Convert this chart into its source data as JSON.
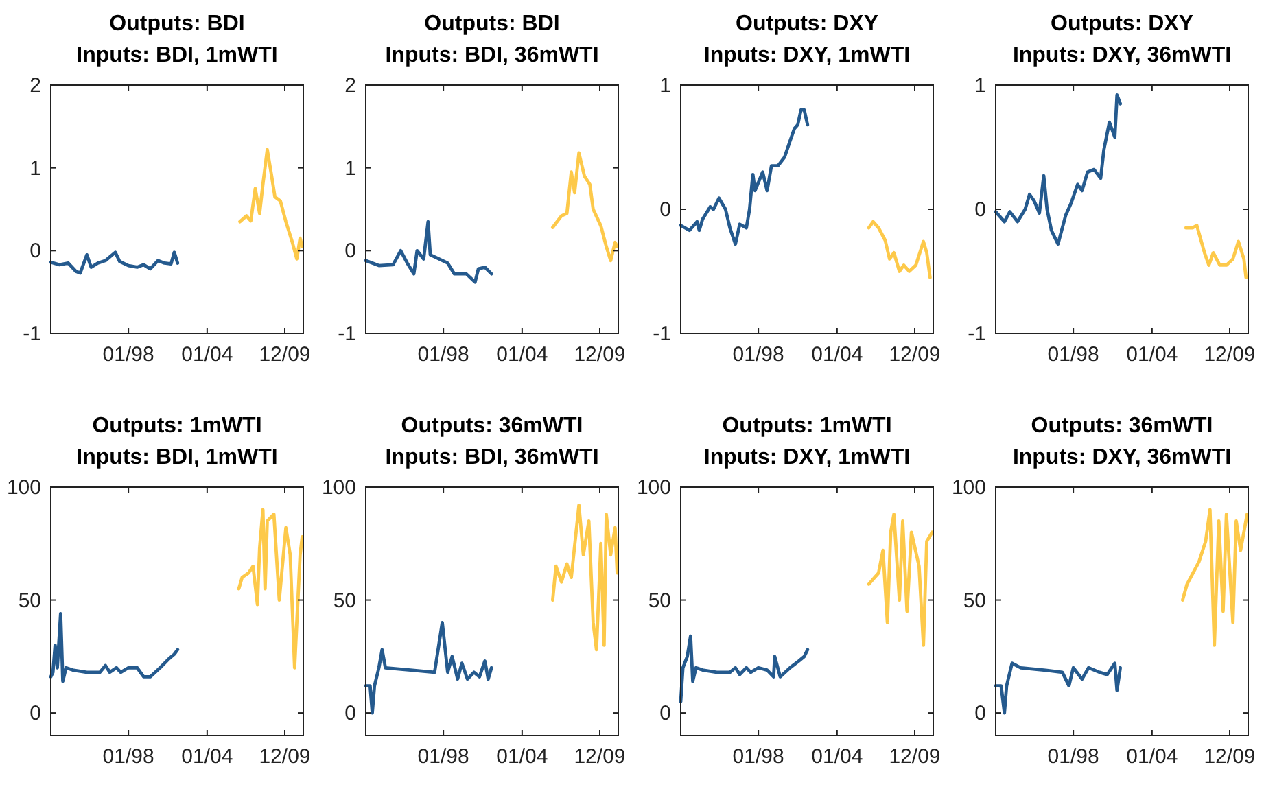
{
  "chart_data": [
    {
      "type": "line",
      "title": "Outputs: BDI",
      "subtitle": "Inputs: BDI, 1mWTI",
      "xlim": [
        "1992-02",
        "2011-05"
      ],
      "xticks": [
        {
          "value": "1998-01",
          "label": "01/98"
        },
        {
          "value": "2004-01",
          "label": "01/04"
        },
        {
          "value": "2009-12",
          "label": "12/09"
        }
      ],
      "ylim": [
        -1,
        2
      ],
      "yticks": [
        -1,
        0,
        1,
        2
      ],
      "series": [
        {
          "color": "#255a8e",
          "x": [
            "1992-02",
            "1992-10",
            "1993-06",
            "1994-01",
            "1994-05",
            "1994-11",
            "1995-03",
            "1995-09",
            "1996-04",
            "1997-01",
            "1997-05",
            "1998-01",
            "1998-09",
            "1999-03",
            "1999-09",
            "2000-04",
            "2000-10",
            "2001-04",
            "2001-07",
            "2001-10"
          ],
          "values": [
            -0.14,
            -0.17,
            -0.15,
            -0.25,
            -0.27,
            -0.05,
            -0.2,
            -0.15,
            -0.12,
            -0.02,
            -0.13,
            -0.18,
            -0.2,
            -0.17,
            -0.22,
            -0.12,
            -0.15,
            -0.16,
            -0.02,
            -0.15
          ]
        },
        {
          "color": "#fdc94a",
          "x": [
            "2006-07",
            "2007-01",
            "2007-05",
            "2007-09",
            "2008-01",
            "2008-04",
            "2008-08",
            "2008-12",
            "2009-03",
            "2009-08",
            "2010-01",
            "2010-07",
            "2010-11",
            "2011-02",
            "2011-04"
          ],
          "values": [
            0.35,
            0.42,
            0.36,
            0.75,
            0.45,
            0.8,
            1.22,
            0.9,
            0.65,
            0.6,
            0.35,
            0.1,
            -0.1,
            0.15,
            0.05
          ]
        }
      ]
    },
    {
      "type": "line",
      "title": "Outputs: BDI",
      "subtitle": "Inputs: BDI, 36mWTI",
      "xlim": [
        "1992-02",
        "2011-05"
      ],
      "xticks": [
        {
          "value": "1998-01",
          "label": "01/98"
        },
        {
          "value": "2004-01",
          "label": "01/04"
        },
        {
          "value": "2009-12",
          "label": "12/09"
        }
      ],
      "ylim": [
        -1,
        2
      ],
      "yticks": [
        -1,
        0,
        1,
        2
      ],
      "series": [
        {
          "color": "#255a8e",
          "x": [
            "1992-02",
            "1993-02",
            "1994-03",
            "1994-10",
            "1995-04",
            "1995-10",
            "1996-01",
            "1996-07",
            "1996-11",
            "1997-01",
            "1997-09",
            "1998-05",
            "1998-11",
            "1999-10",
            "2000-06",
            "2000-09",
            "2001-03",
            "2001-09"
          ],
          "values": [
            -0.12,
            -0.18,
            -0.17,
            0.0,
            -0.15,
            -0.28,
            0.0,
            -0.1,
            0.35,
            -0.05,
            -0.1,
            -0.15,
            -0.28,
            -0.28,
            -0.38,
            -0.22,
            -0.2,
            -0.28
          ]
        },
        {
          "color": "#fdc94a",
          "x": [
            "2006-05",
            "2007-01",
            "2007-06",
            "2007-10",
            "2008-01",
            "2008-05",
            "2008-10",
            "2009-03",
            "2009-06",
            "2010-01",
            "2010-06",
            "2010-10",
            "2011-02",
            "2011-04"
          ],
          "values": [
            0.28,
            0.42,
            0.45,
            0.95,
            0.7,
            1.18,
            0.9,
            0.8,
            0.5,
            0.3,
            0.05,
            -0.12,
            0.1,
            0.05
          ]
        }
      ]
    },
    {
      "type": "line",
      "title": "Outputs: DXY",
      "subtitle": "Inputs: DXY, 1mWTI",
      "xlim": [
        "1992-02",
        "2011-05"
      ],
      "xticks": [
        {
          "value": "1998-01",
          "label": "01/98"
        },
        {
          "value": "2004-01",
          "label": "01/04"
        },
        {
          "value": "2009-12",
          "label": "12/09"
        }
      ],
      "ylim": [
        -1,
        1
      ],
      "yticks": [
        -1,
        0,
        1
      ],
      "series": [
        {
          "color": "#255a8e",
          "x": [
            "1992-02",
            "1992-10",
            "1993-05",
            "1993-07",
            "1993-10",
            "1994-05",
            "1994-08",
            "1995-01",
            "1995-07",
            "1995-11",
            "1996-04",
            "1996-08",
            "1997-02",
            "1997-05",
            "1997-08",
            "1997-10",
            "1998-05",
            "1998-09",
            "1999-01",
            "1999-07",
            "2000-01",
            "2000-06",
            "2000-10",
            "2001-01",
            "2001-04",
            "2001-07",
            "2001-10"
          ],
          "values": [
            -0.13,
            -0.17,
            -0.1,
            -0.17,
            -0.08,
            0.02,
            0.0,
            0.09,
            0.0,
            -0.15,
            -0.28,
            -0.12,
            -0.15,
            0.0,
            0.28,
            0.15,
            0.3,
            0.15,
            0.35,
            0.35,
            0.42,
            0.55,
            0.65,
            0.68,
            0.8,
            0.8,
            0.68
          ]
        },
        {
          "color": "#fdc94a",
          "x": [
            "2006-06",
            "2006-10",
            "2007-03",
            "2007-09",
            "2008-01",
            "2008-05",
            "2008-10",
            "2009-02",
            "2009-07",
            "2010-01",
            "2010-08",
            "2010-11",
            "2011-02"
          ],
          "values": [
            -0.15,
            -0.1,
            -0.15,
            -0.25,
            -0.4,
            -0.35,
            -0.5,
            -0.45,
            -0.5,
            -0.45,
            -0.26,
            -0.35,
            -0.55
          ]
        }
      ]
    },
    {
      "type": "line",
      "title": "Outputs: DXY",
      "subtitle": "Inputs: DXY, 36mWTI",
      "xlim": [
        "1992-02",
        "2011-05"
      ],
      "xticks": [
        {
          "value": "1998-01",
          "label": "01/98"
        },
        {
          "value": "2004-01",
          "label": "01/04"
        },
        {
          "value": "2009-12",
          "label": "12/09"
        }
      ],
      "ylim": [
        -1,
        1
      ],
      "yticks": [
        -1,
        0,
        1
      ],
      "series": [
        {
          "color": "#255a8e",
          "x": [
            "1992-02",
            "1992-10",
            "1993-03",
            "1993-10",
            "1994-05",
            "1994-09",
            "1995-01",
            "1995-06",
            "1995-10",
            "1996-01",
            "1996-05",
            "1996-11",
            "1997-06",
            "1997-11",
            "1998-05",
            "1998-09",
            "1999-02",
            "1999-08",
            "2000-02",
            "2000-05",
            "2000-10",
            "2001-03",
            "2001-05",
            "2001-08"
          ],
          "values": [
            -0.02,
            -0.1,
            -0.02,
            -0.1,
            0.0,
            0.12,
            0.07,
            -0.03,
            0.27,
            0.0,
            -0.17,
            -0.28,
            -0.05,
            0.05,
            0.2,
            0.15,
            0.3,
            0.32,
            0.25,
            0.48,
            0.7,
            0.58,
            0.92,
            0.85
          ]
        },
        {
          "color": "#fdc94a",
          "x": [
            "2006-08",
            "2007-02",
            "2007-06",
            "2008-01",
            "2008-05",
            "2008-09",
            "2009-03",
            "2009-09",
            "2010-03",
            "2010-08",
            "2011-01",
            "2011-03"
          ],
          "values": [
            -0.15,
            -0.15,
            -0.13,
            -0.35,
            -0.45,
            -0.35,
            -0.45,
            -0.45,
            -0.4,
            -0.26,
            -0.4,
            -0.55
          ]
        }
      ]
    },
    {
      "type": "line",
      "title": "Outputs: 1mWTI",
      "subtitle": "Inputs: BDI, 1mWTI",
      "xlim": [
        "1992-02",
        "2011-05"
      ],
      "xticks": [
        {
          "value": "1998-01",
          "label": "01/98"
        },
        {
          "value": "2004-01",
          "label": "01/04"
        },
        {
          "value": "2009-12",
          "label": "12/09"
        }
      ],
      "ylim": [
        -10,
        100
      ],
      "yticks": [
        0,
        50,
        100
      ],
      "series": [
        {
          "color": "#255a8e",
          "x": [
            "1992-02",
            "1992-04",
            "1992-06",
            "1992-08",
            "1992-11",
            "1993-01",
            "1993-04",
            "1993-10",
            "1994-11",
            "1995-11",
            "1996-04",
            "1996-08",
            "1997-02",
            "1997-06",
            "1998-01",
            "1998-09",
            "1999-03",
            "1999-09",
            "2000-06",
            "2001-02",
            "2001-07",
            "2001-10"
          ],
          "values": [
            16,
            18,
            30,
            20,
            44,
            14,
            20,
            19,
            18,
            18,
            21,
            18,
            20,
            18,
            20,
            20,
            16,
            16,
            20,
            24,
            26,
            28
          ]
        },
        {
          "color": "#fdc94a",
          "x": [
            "2006-06",
            "2006-09",
            "2007-03",
            "2007-07",
            "2007-11",
            "2008-01",
            "2008-04",
            "2008-06",
            "2008-08",
            "2009-02",
            "2009-07",
            "2010-01",
            "2010-05",
            "2010-09",
            "2011-02",
            "2011-04"
          ],
          "values": [
            55,
            60,
            62,
            65,
            48,
            73,
            90,
            55,
            85,
            88,
            50,
            82,
            70,
            20,
            70,
            78
          ]
        }
      ]
    },
    {
      "type": "line",
      "title": "Outputs: 36mWTI",
      "subtitle": "Inputs: BDI, 36mWTI",
      "xlim": [
        "1992-02",
        "2011-05"
      ],
      "xticks": [
        {
          "value": "1998-01",
          "label": "01/98"
        },
        {
          "value": "2004-01",
          "label": "01/04"
        },
        {
          "value": "2009-12",
          "label": "12/09"
        }
      ],
      "ylim": [
        -10,
        100
      ],
      "yticks": [
        0,
        50,
        100
      ],
      "series": [
        {
          "color": "#255a8e",
          "x": [
            "1992-02",
            "1992-06",
            "1992-08",
            "1992-10",
            "1993-02",
            "1993-05",
            "1993-08",
            "1995-07",
            "1997-05",
            "1997-12",
            "1998-05",
            "1998-09",
            "1999-02",
            "1999-06",
            "1999-11",
            "2000-05",
            "2000-10",
            "2001-03",
            "2001-06",
            "2001-09"
          ],
          "values": [
            12,
            12,
            0,
            12,
            20,
            28,
            20,
            19,
            18,
            40,
            18,
            25,
            15,
            22,
            15,
            18,
            16,
            23,
            15,
            20
          ]
        },
        {
          "color": "#fdc94a",
          "x": [
            "2006-05",
            "2006-08",
            "2007-01",
            "2007-06",
            "2007-10",
            "2008-05",
            "2008-09",
            "2009-02",
            "2009-06",
            "2009-09",
            "2010-01",
            "2010-04",
            "2010-06",
            "2010-10",
            "2011-02",
            "2011-04"
          ],
          "values": [
            50,
            65,
            58,
            66,
            60,
            92,
            70,
            85,
            40,
            28,
            75,
            30,
            88,
            70,
            82,
            62
          ]
        }
      ]
    },
    {
      "type": "line",
      "title": "Outputs: 1mWTI",
      "subtitle": "Inputs: DXY, 1mWTI",
      "xlim": [
        "1992-02",
        "2011-05"
      ],
      "xticks": [
        {
          "value": "1998-01",
          "label": "01/98"
        },
        {
          "value": "2004-01",
          "label": "01/04"
        },
        {
          "value": "2009-12",
          "label": "12/09"
        }
      ],
      "ylim": [
        -10,
        100
      ],
      "yticks": [
        0,
        50,
        100
      ],
      "series": [
        {
          "color": "#255a8e",
          "x": [
            "1992-02",
            "1992-04",
            "1992-08",
            "1992-11",
            "1993-01",
            "1993-04",
            "1993-10",
            "1994-11",
            "1995-11",
            "1996-04",
            "1996-08",
            "1997-02",
            "1997-06",
            "1998-01",
            "1998-09",
            "1999-03",
            "1999-04",
            "1999-09",
            "2000-06",
            "2001-02",
            "2001-07",
            "2001-10"
          ],
          "values": [
            5,
            20,
            25,
            34,
            14,
            20,
            19,
            18,
            18,
            20,
            17,
            20,
            18,
            20,
            19,
            16,
            25,
            16,
            20,
            23,
            25,
            28
          ]
        },
        {
          "color": "#fdc94a",
          "x": [
            "2006-06",
            "2007-03",
            "2007-07",
            "2007-11",
            "2008-02",
            "2008-05",
            "2008-10",
            "2009-01",
            "2009-05",
            "2009-09",
            "2010-04",
            "2010-08",
            "2010-11",
            "2011-04"
          ],
          "values": [
            57,
            62,
            72,
            40,
            80,
            88,
            50,
            85,
            45,
            80,
            65,
            30,
            76,
            80
          ]
        }
      ]
    },
    {
      "type": "line",
      "title": "Outputs: 36mWTI",
      "subtitle": "Inputs: DXY, 36mWTI",
      "xlim": [
        "1992-02",
        "2011-05"
      ],
      "xticks": [
        {
          "value": "1998-01",
          "label": "01/98"
        },
        {
          "value": "2004-01",
          "label": "01/04"
        },
        {
          "value": "2009-12",
          "label": "12/09"
        }
      ],
      "ylim": [
        -10,
        100
      ],
      "yticks": [
        0,
        50,
        100
      ],
      "series": [
        {
          "color": "#255a8e",
          "x": [
            "1992-02",
            "1992-07",
            "1992-10",
            "1992-12",
            "1993-05",
            "1994-01",
            "1995-10",
            "1997-03",
            "1997-09",
            "1998-01",
            "1998-09",
            "1999-03",
            "2000-01",
            "2000-08",
            "2001-03",
            "2001-05",
            "2001-08"
          ],
          "values": [
            12,
            12,
            0,
            12,
            22,
            20,
            19,
            18,
            12,
            20,
            15,
            20,
            18,
            17,
            22,
            10,
            20
          ]
        },
        {
          "color": "#fdc94a",
          "x": [
            "2006-05",
            "2006-09",
            "2007-08",
            "2008-02",
            "2008-06",
            "2008-10",
            "2009-02",
            "2009-06",
            "2009-09",
            "2010-03",
            "2010-06",
            "2010-10",
            "2011-04"
          ],
          "values": [
            50,
            57,
            67,
            76,
            90,
            30,
            85,
            45,
            88,
            40,
            85,
            72,
            88
          ]
        }
      ]
    }
  ]
}
